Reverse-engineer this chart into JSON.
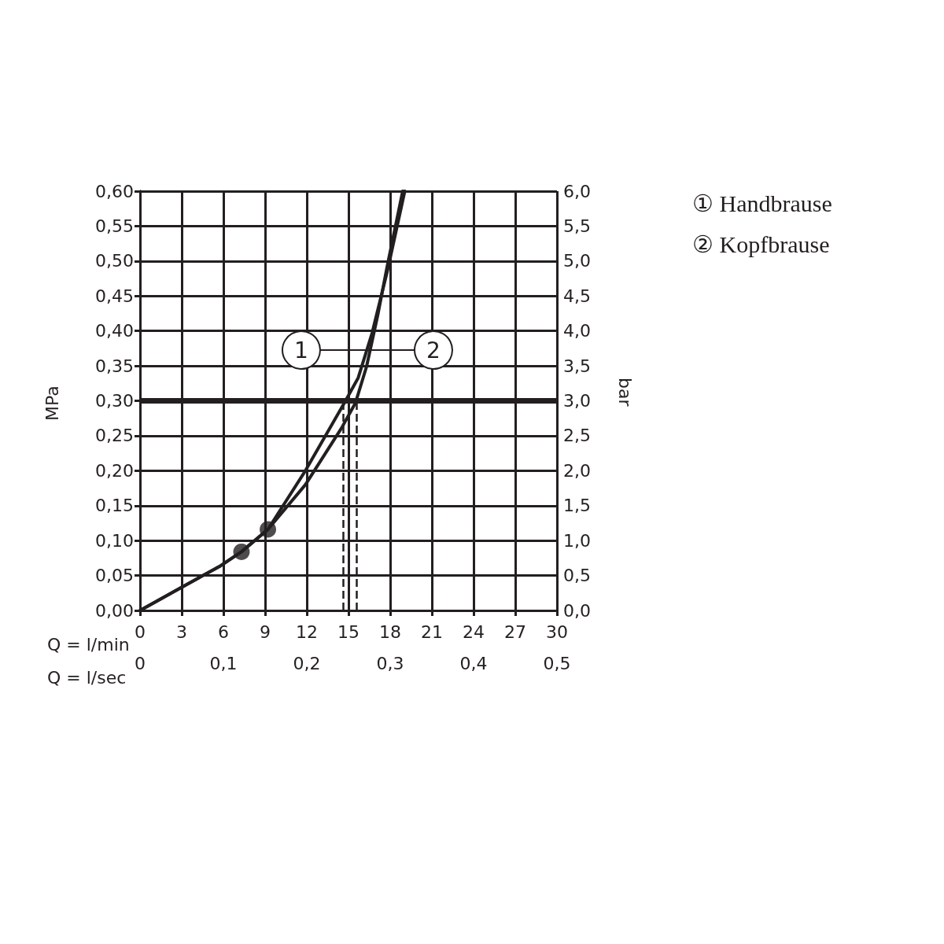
{
  "chart_data": {
    "type": "line",
    "xlabel": "Q = l/min",
    "x2label": "Q = l/sec",
    "ylabel": "MPa",
    "y2label": "bar",
    "xlim": [
      0,
      30
    ],
    "xticks": [
      0,
      3,
      6,
      9,
      12,
      15,
      18,
      21,
      24,
      27,
      30
    ],
    "x2lim": [
      0,
      0.5
    ],
    "x2ticks": [
      0,
      {
        "value": 0.1,
        "label": "0,1"
      },
      {
        "value": 0.2,
        "label": "0,2"
      },
      {
        "value": 0.3,
        "label": "0,3"
      },
      {
        "value": 0.4,
        "label": "0,4"
      },
      {
        "value": 0.5,
        "label": "0,5"
      }
    ],
    "ylim": [
      0,
      0.6
    ],
    "yticks": [
      {
        "value": 0,
        "label": "0,00"
      },
      {
        "value": 0.05,
        "label": "0,05"
      },
      {
        "value": 0.1,
        "label": "0,10"
      },
      {
        "value": 0.15,
        "label": "0,15"
      },
      {
        "value": 0.2,
        "label": "0,20"
      },
      {
        "value": 0.25,
        "label": "0,25"
      },
      {
        "value": 0.3,
        "label": "0,30"
      },
      {
        "value": 0.35,
        "label": "0,35"
      },
      {
        "value": 0.4,
        "label": "0,40"
      },
      {
        "value": 0.45,
        "label": "0,45"
      },
      {
        "value": 0.5,
        "label": "0,50"
      },
      {
        "value": 0.55,
        "label": "0,55"
      },
      {
        "value": 0.6,
        "label": "0,60"
      }
    ],
    "y2lim": [
      0,
      6
    ],
    "y2ticks": [
      {
        "value": 0,
        "label": "0,0"
      },
      {
        "value": 0.5,
        "label": "0,5"
      },
      {
        "value": 1,
        "label": "1,0"
      },
      {
        "value": 1.5,
        "label": "1,5"
      },
      {
        "value": 2,
        "label": "2,0"
      },
      {
        "value": 2.5,
        "label": "2,5"
      },
      {
        "value": 3,
        "label": "3,0"
      },
      {
        "value": 3.5,
        "label": "3,5"
      },
      {
        "value": 4,
        "label": "4,0"
      },
      {
        "value": 4.5,
        "label": "4,5"
      },
      {
        "value": 5,
        "label": "5,0"
      },
      {
        "value": 5.5,
        "label": "5,5"
      },
      {
        "value": 6,
        "label": "6,0"
      }
    ],
    "grid": true,
    "legend": "top right",
    "marker": "none",
    "line_style": "solid",
    "series": [
      {
        "name": "① Handbrause",
        "color": "#231f20",
        "x": [
          0,
          2.9,
          5.8,
          7.3,
          9.2,
          11.9,
          14.7,
          15.7,
          16.7,
          17.8,
          19.05
        ],
        "values": [
          0,
          0.032,
          0.064,
          0.084,
          0.116,
          0.2,
          0.297,
          0.333,
          0.397,
          0.486,
          0.6
        ]
      },
      {
        "name": "② Kopfbrause",
        "color": "#231f20",
        "x": [
          0,
          2.9,
          5.8,
          7.3,
          9.2,
          11.9,
          14.5,
          15.5,
          16.3,
          17.1,
          17.8,
          18.9
        ],
        "values": [
          0,
          0.032,
          0.064,
          0.084,
          0.116,
          0.18,
          0.261,
          0.297,
          0.349,
          0.422,
          0.494,
          0.6
        ]
      },
      {
        "type": "scatter",
        "marker": "circle",
        "color": "#231f20",
        "x": [
          7.3,
          9.2
        ],
        "values": [
          0.084,
          0.116
        ]
      }
    ],
    "ref_lines": [
      {
        "axis": "y",
        "value": 0.3,
        "color": "#231f20"
      },
      {
        "axis": "x",
        "value": 14.6,
        "color": "#231f20",
        "line_style": "dashed"
      },
      {
        "axis": "x",
        "value": 15.6,
        "color": "#231f20",
        "line_style": "dashed"
      }
    ],
    "annotations": [
      "1",
      "2"
    ]
  }
}
